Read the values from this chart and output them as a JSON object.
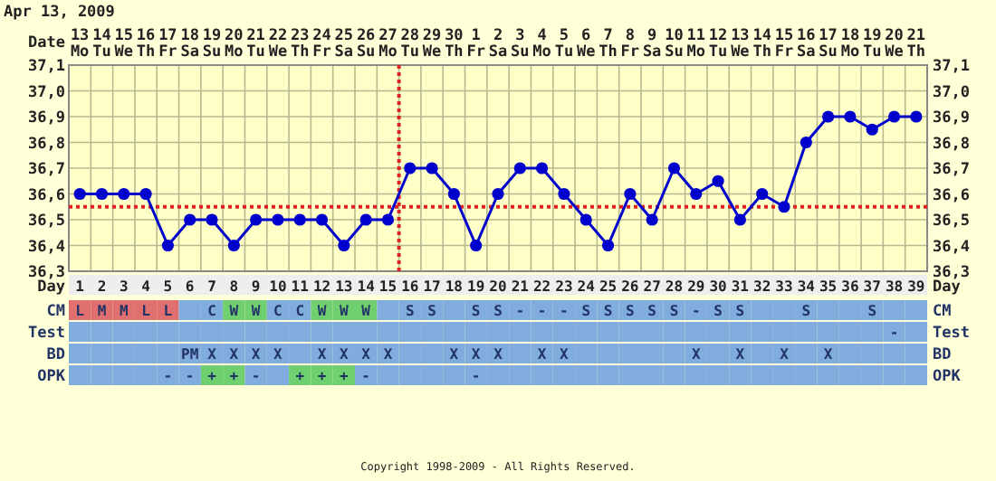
{
  "chart_data": [
    {
      "type": "line",
      "title": "Apr 13, 2009",
      "xlabel": "Day",
      "x2label": "Date",
      "x": [
        1,
        2,
        3,
        4,
        5,
        6,
        7,
        8,
        9,
        10,
        11,
        12,
        13,
        14,
        15,
        16,
        17,
        18,
        19,
        20,
        21,
        22,
        23,
        24,
        25,
        26,
        27,
        28,
        29,
        30,
        31,
        32,
        33,
        34,
        35,
        36,
        37,
        38,
        39
      ],
      "series": [
        {
          "color": "#0000cc",
          "values": [
            36.6,
            36.6,
            36.6,
            36.6,
            36.4,
            36.5,
            36.5,
            36.4,
            36.5,
            36.5,
            36.5,
            36.5,
            36.4,
            36.5,
            36.5,
            36.7,
            36.7,
            36.6,
            36.4,
            36.6,
            36.7,
            36.7,
            36.6,
            36.5,
            36.4,
            36.6,
            36.5,
            36.7,
            36.6,
            36.65,
            36.5,
            36.6,
            36.55,
            36.8,
            36.9,
            36.9,
            36.85,
            36.9,
            36.9
          ]
        }
      ],
      "xlim": [
        0.5,
        39.5
      ],
      "xticks": [
        1,
        2,
        3,
        4,
        5,
        6,
        7,
        8,
        9,
        10,
        11,
        12,
        13,
        14,
        15,
        16,
        17,
        18,
        19,
        20,
        21,
        22,
        23,
        24,
        25,
        26,
        27,
        28,
        29,
        30,
        31,
        32,
        33,
        34,
        35,
        36,
        37,
        38,
        39
      ],
      "x2lim": [
        "2009-04-12T12:00",
        "2009-05-21T12:00"
      ],
      "x2ticks": [
        {
          "value": "2009-04-13",
          "label": "13 Mo"
        },
        {
          "value": "2009-04-14",
          "label": "14 Tu"
        },
        {
          "value": "2009-04-15",
          "label": "15 We"
        },
        {
          "value": "2009-04-16",
          "label": "16 Th"
        },
        {
          "value": "2009-04-17",
          "label": "17 Fr"
        },
        {
          "value": "2009-04-18",
          "label": "18 Sa"
        },
        {
          "value": "2009-04-19",
          "label": "19 Su"
        },
        {
          "value": "2009-04-20",
          "label": "20 Mo"
        },
        {
          "value": "2009-04-21",
          "label": "21 Tu"
        },
        {
          "value": "2009-04-22",
          "label": "22 We"
        },
        {
          "value": "2009-04-23",
          "label": "23 Th"
        },
        {
          "value": "2009-04-24",
          "label": "24 Fr"
        },
        {
          "value": "2009-04-25",
          "label": "25 Sa"
        },
        {
          "value": "2009-04-26",
          "label": "26 Su"
        },
        {
          "value": "2009-04-27",
          "label": "27 Mo"
        },
        {
          "value": "2009-04-28",
          "label": "28 Tu"
        },
        {
          "value": "2009-04-29",
          "label": "29 We"
        },
        {
          "value": "2009-04-30",
          "label": "30 Th"
        },
        {
          "value": "2009-05-01",
          "label": "1 Fr"
        },
        {
          "value": "2009-05-02",
          "label": "2 Sa"
        },
        {
          "value": "2009-05-03",
          "label": "3 Su"
        },
        {
          "value": "2009-05-04",
          "label": "4 Mo"
        },
        {
          "value": "2009-05-05",
          "label": "5 Tu"
        },
        {
          "value": "2009-05-06",
          "label": "6 We"
        },
        {
          "value": "2009-05-07",
          "label": "7 Th"
        },
        {
          "value": "2009-05-08",
          "label": "8 Fr"
        },
        {
          "value": "2009-05-09",
          "label": "9 Sa"
        },
        {
          "value": "2009-05-10",
          "label": "10 Su"
        },
        {
          "value": "2009-05-11",
          "label": "11 Mo"
        },
        {
          "value": "2009-05-12",
          "label": "12 Tu"
        },
        {
          "value": "2009-05-13",
          "label": "13 We"
        },
        {
          "value": "2009-05-14",
          "label": "14 Th"
        },
        {
          "value": "2009-05-15",
          "label": "15 Fr"
        },
        {
          "value": "2009-05-16",
          "label": "16 Sa"
        },
        {
          "value": "2009-05-17",
          "label": "17 Su"
        },
        {
          "value": "2009-05-18",
          "label": "18 Mo"
        },
        {
          "value": "2009-05-19",
          "label": "19 Tu"
        },
        {
          "value": "2009-05-20",
          "label": "20 We"
        },
        {
          "value": "2009-05-21",
          "label": "21 Th"
        }
      ],
      "ylim": [
        36.3,
        37.1
      ],
      "yticks": [
        {
          "value": 36.3,
          "label": "36,3"
        },
        {
          "value": 36.4,
          "label": "36,4"
        },
        {
          "value": 36.5,
          "label": "36,5"
        },
        {
          "value": 36.6,
          "label": "36,6"
        },
        {
          "value": 36.7,
          "label": "36,7"
        },
        {
          "value": 36.8,
          "label": "36,8"
        },
        {
          "value": 36.9,
          "label": "36,9"
        },
        {
          "value": 37.0,
          "label": "37,0"
        },
        {
          "value": 37.1,
          "label": "37,1"
        }
      ],
      "y2lim": [
        36.3,
        37.1
      ],
      "y2ticks": [
        {
          "value": 36.3,
          "label": "36,3"
        },
        {
          "value": 36.4,
          "label": "36,4"
        },
        {
          "value": 36.5,
          "label": "36,5"
        },
        {
          "value": 36.6,
          "label": "36,6"
        },
        {
          "value": 36.7,
          "label": "36,7"
        },
        {
          "value": 36.8,
          "label": "36,8"
        },
        {
          "value": 36.9,
          "label": "36,9"
        },
        {
          "value": 37.0,
          "label": "37,0"
        },
        {
          "value": 37.1,
          "label": "37,1"
        }
      ],
      "grid": true,
      "marker": "circle",
      "line_style": "solid",
      "ref_lines": [
        {
          "axis": "y",
          "value": 36.55,
          "color": "#dd2222",
          "line_style": "dotted"
        },
        {
          "axis": "x",
          "value": 15.5,
          "color": "#dd2222",
          "line_style": "dotted"
        }
      ],
      "annotations": [
        "Copyright 1998-2009 - All Rights Reserved."
      ]
    },
    {
      "type": "other",
      "categories": [
        null,
        null,
        null,
        null,
        null,
        null,
        null,
        null,
        null,
        null,
        null,
        null,
        null,
        null,
        null,
        null,
        null,
        null,
        null,
        null,
        null,
        null,
        null,
        null,
        null,
        null,
        null,
        null,
        null,
        null,
        null,
        null,
        null,
        null,
        null,
        null,
        null,
        null,
        null
      ],
      "y_categories": [
        "CM",
        "Test",
        "BD",
        "OPK"
      ],
      "y2_categories": [
        "CM",
        "Test",
        "BD",
        "OPK"
      ],
      "cell_labels": [
        [
          "L",
          "M",
          "M",
          "L",
          "L",
          null,
          "C",
          "W",
          "W",
          "C",
          "C",
          "W",
          "W",
          "W",
          null,
          "S",
          "S",
          null,
          "S",
          "S",
          "-",
          "-",
          "-",
          "S",
          "S",
          "S",
          "S",
          "S",
          "-",
          "S",
          "S",
          null,
          null,
          "S",
          null,
          null,
          "S",
          null,
          null
        ],
        [
          null,
          null,
          null,
          null,
          null,
          null,
          null,
          null,
          null,
          null,
          null,
          null,
          null,
          null,
          null,
          null,
          null,
          null,
          null,
          null,
          null,
          null,
          null,
          null,
          null,
          null,
          null,
          null,
          null,
          null,
          null,
          null,
          null,
          null,
          null,
          null,
          null,
          "-",
          null
        ],
        [
          null,
          null,
          null,
          null,
          null,
          "PM",
          "X",
          "X",
          "X",
          "X",
          null,
          "X",
          "X",
          "X",
          "X",
          null,
          null,
          "X",
          "X",
          "X",
          null,
          "X",
          "X",
          null,
          null,
          null,
          null,
          null,
          "X",
          null,
          "X",
          null,
          "X",
          null,
          "X",
          null,
          null,
          null,
          null
        ],
        [
          null,
          null,
          null,
          null,
          "-",
          "-",
          "+",
          "+",
          "-",
          null,
          "+",
          "+",
          "+",
          "-",
          null,
          null,
          null,
          null,
          "-",
          null,
          null,
          null,
          null,
          null,
          null,
          null,
          null,
          null,
          null,
          null,
          null,
          null,
          null,
          null,
          null,
          null,
          null,
          null,
          null
        ]
      ],
      "colors": [
        [
          "#e07070",
          "#e07070",
          "#e07070",
          "#e07070",
          "#e07070",
          "#80acde",
          "#80acde",
          "#70d070",
          "#70d070",
          "#80acde",
          "#80acde",
          "#70d070",
          "#70d070",
          "#70d070",
          "#80acde",
          "#80acde",
          "#80acde",
          "#80acde",
          "#80acde",
          "#80acde",
          "#80acde",
          "#80acde",
          "#80acde",
          "#80acde",
          "#80acde",
          "#80acde",
          "#80acde",
          "#80acde",
          "#80acde",
          "#80acde",
          "#80acde",
          "#80acde",
          "#80acde",
          "#80acde",
          "#80acde",
          "#80acde",
          "#80acde",
          "#80acde",
          "#80acde"
        ],
        [
          "#80acde",
          "#80acde",
          "#80acde",
          "#80acde",
          "#80acde",
          "#80acde",
          "#80acde",
          "#80acde",
          "#80acde",
          "#80acde",
          "#80acde",
          "#80acde",
          "#80acde",
          "#80acde",
          "#80acde",
          "#80acde",
          "#80acde",
          "#80acde",
          "#80acde",
          "#80acde",
          "#80acde",
          "#80acde",
          "#80acde",
          "#80acde",
          "#80acde",
          "#80acde",
          "#80acde",
          "#80acde",
          "#80acde",
          "#80acde",
          "#80acde",
          "#80acde",
          "#80acde",
          "#80acde",
          "#80acde",
          "#80acde",
          "#80acde",
          "#80acde",
          "#80acde"
        ],
        [
          "#80acde",
          "#80acde",
          "#80acde",
          "#80acde",
          "#80acde",
          "#80acde",
          "#80acde",
          "#80acde",
          "#80acde",
          "#80acde",
          "#80acde",
          "#80acde",
          "#80acde",
          "#80acde",
          "#80acde",
          "#80acde",
          "#80acde",
          "#80acde",
          "#80acde",
          "#80acde",
          "#80acde",
          "#80acde",
          "#80acde",
          "#80acde",
          "#80acde",
          "#80acde",
          "#80acde",
          "#80acde",
          "#80acde",
          "#80acde",
          "#80acde",
          "#80acde",
          "#80acde",
          "#80acde",
          "#80acde",
          "#80acde",
          "#80acde",
          "#80acde",
          "#80acde"
        ],
        [
          "#80acde",
          "#80acde",
          "#80acde",
          "#80acde",
          "#80acde",
          "#80acde",
          "#70d070",
          "#70d070",
          "#80acde",
          "#80acde",
          "#70d070",
          "#70d070",
          "#70d070",
          "#80acde",
          "#80acde",
          "#80acde",
          "#80acde",
          "#80acde",
          "#80acde",
          "#80acde",
          "#80acde",
          "#80acde",
          "#80acde",
          "#80acde",
          "#80acde",
          "#80acde",
          "#80acde",
          "#80acde",
          "#80acde",
          "#80acde",
          "#80acde",
          "#80acde",
          "#80acde",
          "#80acde",
          "#80acde",
          "#80acde",
          "#80acde",
          "#80acde",
          "#80acde"
        ]
      ]
    }
  ]
}
